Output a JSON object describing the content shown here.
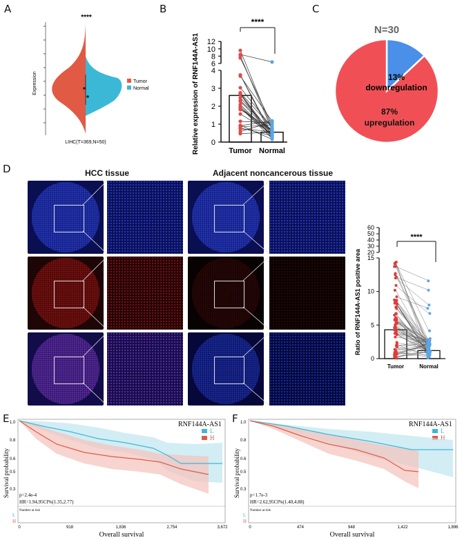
{
  "panel_labels": {
    "a": "A",
    "b": "B",
    "c": "C",
    "d": "D",
    "e": "E",
    "f": "F"
  },
  "panel_a": {
    "significance": "****",
    "ylabel": "Expression",
    "xlabel": "LIHC(T=369,N=50)",
    "legend": [
      {
        "name": "Tumor",
        "color": "#e05a44"
      },
      {
        "name": "Normal",
        "color": "#3bb8d6"
      }
    ]
  },
  "panel_b": {
    "ylabel": "Relative expression of RNF144A-AS1",
    "significance": "****",
    "yticks_lower": [
      "0",
      "1",
      "2",
      "3",
      "4"
    ],
    "yticks_upper": [
      "6",
      "8",
      "10",
      "12"
    ],
    "chart_data": {
      "type": "bar",
      "categories": [
        "Tumor",
        "Normal"
      ],
      "values": [
        2.6,
        0.55
      ],
      "ylim": [
        0,
        12
      ],
      "axis_break": [
        4,
        6
      ]
    }
  },
  "panel_c": {
    "title": "N=30",
    "chart_data": {
      "type": "pie",
      "slices": [
        {
          "label": "upregulation",
          "value": 87,
          "pct_label": "87%",
          "color": "#f05055"
        },
        {
          "label": "downregulation",
          "value": 13,
          "pct_label": "13%",
          "color": "#4a8fe8"
        }
      ]
    }
  },
  "panel_d": {
    "col_titles": [
      "HCC tissue",
      "Adjacent noncancerous tissue"
    ],
    "ylabel": "Ratio of RNF144A-AS1 positive area",
    "significance": "****",
    "yticks_lower": [
      "0",
      "5",
      "10",
      "15"
    ],
    "yticks_upper": [
      "20",
      "30",
      "40",
      "50",
      "60"
    ],
    "chart_data": {
      "type": "bar",
      "categories": [
        "Tumor",
        "Normal"
      ],
      "values": [
        4.3,
        1.2
      ],
      "ylim": [
        0,
        60
      ],
      "axis_break": [
        15,
        20
      ]
    }
  },
  "panel_e": {
    "title": "RNF144A-AS1",
    "ylabel": "Survival probability",
    "xlabel": "Overall survival",
    "legend": [
      {
        "name": "L",
        "color": "#3bb8d6"
      },
      {
        "name": "H",
        "color": "#e05a44"
      }
    ],
    "pvalue": "p=2.4e-4",
    "hr": "HR=1.94,95CI%(1.35,2.77)",
    "risk_label": "Number at risk",
    "yticks": [
      "1.0",
      "0.8",
      "0.6",
      "0.5",
      "0.3"
    ],
    "xticks": [
      "0",
      "918",
      "1,836",
      "2,754",
      "3,672"
    ],
    "risk_rows": [
      "L",
      "H"
    ]
  },
  "panel_f": {
    "title": "RNF144A-AS1",
    "ylabel": "Survival probability",
    "xlabel": "Overall survival",
    "legend": [
      {
        "name": "L",
        "color": "#3bb8d6"
      },
      {
        "name": "H",
        "color": "#e05a44"
      }
    ],
    "pvalue": "p=1.7e-3",
    "hr": "HR=2.62,95CI%(1.40,4.88)",
    "risk_label": "Number at risk",
    "yticks": [
      "1.0",
      "0.8",
      "0.6",
      "0.5",
      "0.3"
    ],
    "xticks": [
      "0",
      "474",
      "948",
      "1,422",
      "1,896"
    ],
    "risk_rows": [
      "L",
      "H"
    ]
  }
}
